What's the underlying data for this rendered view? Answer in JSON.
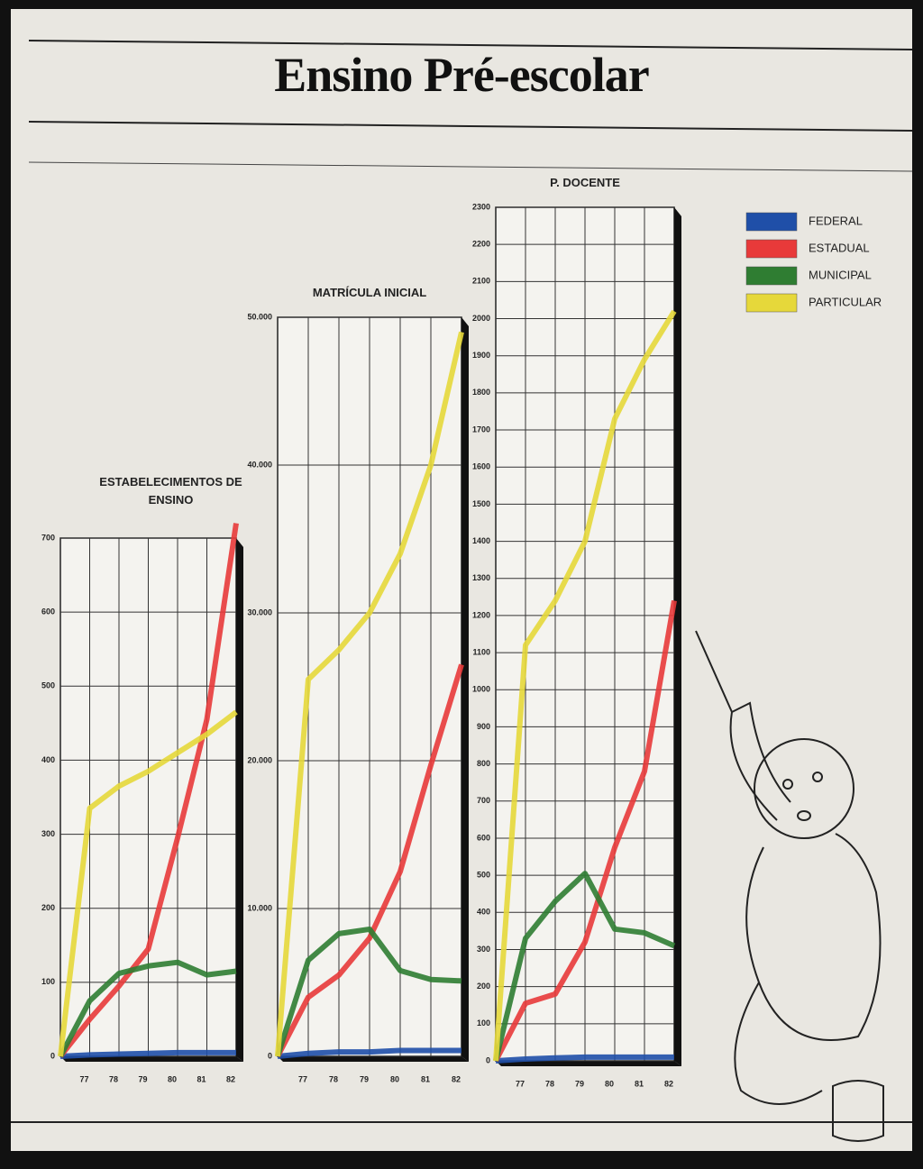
{
  "title": "Ensino Pré-escolar",
  "chart_data": [
    {
      "type": "line",
      "title": "ESTABELECIMENTOS DE ENSINO",
      "categories": [
        null,
        "77",
        "78",
        "79",
        "80",
        "81",
        "82"
      ],
      "ylim": [
        0,
        700
      ],
      "yticks": [
        0,
        100,
        200,
        300,
        400,
        500,
        600,
        700
      ],
      "grid": true,
      "series": [
        {
          "color": "#1f4fa8",
          "values": [
            0,
            2,
            3,
            4,
            5,
            5,
            5
          ]
        },
        {
          "color": "#e83a3a",
          "values": [
            0,
            50,
            95,
            145,
            295,
            455,
            720
          ]
        },
        {
          "color": "#2f7d32",
          "values": [
            0,
            75,
            112,
            122,
            127,
            110,
            115
          ]
        },
        {
          "color": "#e6d83a",
          "values": [
            0,
            335,
            365,
            385,
            410,
            435,
            465
          ]
        }
      ]
    },
    {
      "type": "line",
      "title": "MATRÍCULA INICIAL",
      "categories": [
        null,
        "77",
        "78",
        "79",
        "80",
        "81",
        "82"
      ],
      "ylim": [
        0,
        50000
      ],
      "yticks": [
        0,
        {
          "value": 10000,
          "label": "10.000"
        },
        {
          "value": 20000,
          "label": "20.000"
        },
        {
          "value": 30000,
          "label": "30.000"
        },
        {
          "value": 40000,
          "label": "40.000"
        },
        {
          "value": 50000,
          "label": "50.000"
        }
      ],
      "grid": true,
      "series": [
        {
          "color": "#1f4fa8",
          "values": [
            0,
            200,
            300,
            300,
            400,
            400,
            400
          ]
        },
        {
          "color": "#e83a3a",
          "values": [
            0,
            4000,
            5500,
            8000,
            12500,
            19700,
            26500
          ]
        },
        {
          "color": "#2f7d32",
          "values": [
            0,
            6500,
            8300,
            8600,
            5800,
            5200,
            5100
          ]
        },
        {
          "color": "#e6d83a",
          "values": [
            0,
            25500,
            27500,
            30000,
            34000,
            40000,
            49000
          ]
        }
      ]
    },
    {
      "type": "line",
      "title": "P. DOCENTE",
      "categories": [
        null,
        "77",
        "78",
        "79",
        "80",
        "81",
        "82"
      ],
      "ylim": [
        0,
        2300
      ],
      "yticks": [
        0,
        100,
        200,
        300,
        400,
        500,
        600,
        700,
        800,
        900,
        1000,
        1100,
        1200,
        1300,
        1400,
        1500,
        1600,
        1700,
        1800,
        1900,
        2000,
        2100,
        2200,
        2300
      ],
      "grid": true,
      "series": [
        {
          "name": "FEDERAL",
          "color": "#1f4fa8",
          "values": [
            0,
            5,
            8,
            10,
            10,
            10,
            10
          ]
        },
        {
          "name": "ESTADUAL",
          "color": "#e83a3a",
          "values": [
            0,
            155,
            180,
            320,
            575,
            780,
            1240
          ]
        },
        {
          "name": "MUNICIPAL",
          "color": "#2f7d32",
          "values": [
            0,
            330,
            430,
            505,
            355,
            345,
            310
          ]
        },
        {
          "name": "PARTICULAR",
          "color": "#e6d83a",
          "values": [
            0,
            1120,
            1240,
            1400,
            1730,
            1890,
            2020
          ]
        }
      ]
    }
  ]
}
